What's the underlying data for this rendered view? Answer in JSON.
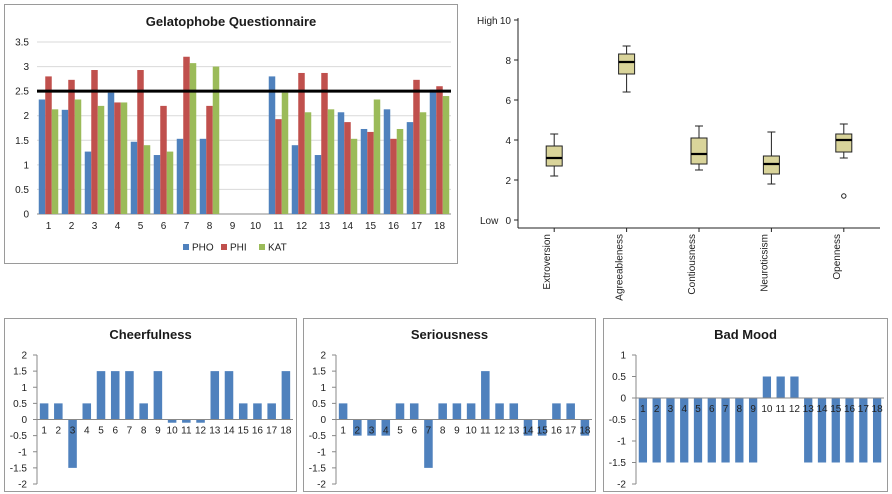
{
  "chart_data": [
    {
      "id": "gelatophobe",
      "type": "bar",
      "title": "Gelatophobe Questionnaire",
      "categories": [
        "1",
        "2",
        "3",
        "4",
        "5",
        "6",
        "7",
        "8",
        "9",
        "10",
        "11",
        "12",
        "13",
        "14",
        "15",
        "16",
        "17",
        "18"
      ],
      "ylim": [
        0,
        3.5
      ],
      "yticks": [
        "0",
        "0.5",
        "1",
        "1.5",
        "2",
        "2.5",
        "3",
        "3.5"
      ],
      "threshold": 2.5,
      "legend_position": "bottom",
      "series": [
        {
          "name": "PHO",
          "color": "#4f81bd",
          "values": [
            2.33,
            2.12,
            1.27,
            2.47,
            1.47,
            1.2,
            1.53,
            1.53,
            null,
            null,
            2.8,
            1.4,
            1.2,
            2.07,
            1.73,
            2.13,
            1.87,
            2.53
          ]
        },
        {
          "name": "PHI",
          "color": "#c0504d",
          "values": [
            2.8,
            2.73,
            2.93,
            2.27,
            2.93,
            2.2,
            3.2,
            2.2,
            null,
            null,
            1.93,
            2.87,
            2.87,
            1.87,
            1.67,
            1.53,
            2.73,
            2.6
          ]
        },
        {
          "name": "KAT",
          "color": "#9bbb59",
          "values": [
            2.13,
            2.33,
            2.2,
            2.27,
            1.4,
            1.27,
            3.07,
            3.0,
            null,
            null,
            2.47,
            2.07,
            2.13,
            1.53,
            2.33,
            1.73,
            2.07,
            2.4
          ]
        }
      ]
    },
    {
      "id": "bigfive",
      "type": "box",
      "categories": [
        "Extroversion",
        "Agreeableness",
        "Contiousness",
        "Neuroticsism",
        "Openness"
      ],
      "ylim": [
        0,
        10
      ],
      "yticks": [
        "0",
        "2",
        "4",
        "6",
        "8",
        "10"
      ],
      "y_high_label": "High",
      "y_low_label": "Low",
      "fill": "#d9d49a",
      "boxes": [
        {
          "min": 2.2,
          "q1": 2.7,
          "median": 3.1,
          "q3": 3.7,
          "max": 4.3,
          "outliers": []
        },
        {
          "min": 6.4,
          "q1": 7.3,
          "median": 7.9,
          "q3": 8.3,
          "max": 8.7,
          "outliers": []
        },
        {
          "min": 2.5,
          "q1": 2.8,
          "median": 3.3,
          "q3": 4.1,
          "max": 4.7,
          "outliers": []
        },
        {
          "min": 1.8,
          "q1": 2.3,
          "median": 2.8,
          "q3": 3.2,
          "max": 4.4,
          "outliers": []
        },
        {
          "min": 3.1,
          "q1": 3.4,
          "median": 4.0,
          "q3": 4.3,
          "max": 4.8,
          "outliers": [
            1.2
          ]
        }
      ]
    },
    {
      "id": "cheerfulness",
      "type": "bar",
      "title": "Cheerfulness",
      "categories": [
        "1",
        "2",
        "3",
        "4",
        "5",
        "6",
        "7",
        "8",
        "9",
        "10",
        "11",
        "12",
        "13",
        "14",
        "15",
        "16",
        "17",
        "18"
      ],
      "ylim": [
        -2,
        2
      ],
      "yticks": [
        "-2",
        "-1.5",
        "-1",
        "-0.5",
        "0",
        "0.5",
        "1",
        "1.5",
        "2"
      ],
      "color": "#4f81bd",
      "values": [
        0.5,
        0.5,
        -1.5,
        0.5,
        1.5,
        1.5,
        1.5,
        0.5,
        1.5,
        -0.1,
        -0.1,
        -0.1,
        1.5,
        1.5,
        0.5,
        0.5,
        0.5,
        1.5
      ]
    },
    {
      "id": "seriousness",
      "type": "bar",
      "title": "Seriousness",
      "categories": [
        "1",
        "2",
        "3",
        "4",
        "5",
        "6",
        "7",
        "8",
        "9",
        "10",
        "11",
        "12",
        "13",
        "14",
        "15",
        "16",
        "17",
        "18"
      ],
      "ylim": [
        -2,
        2
      ],
      "yticks": [
        "-2",
        "-1.5",
        "-1",
        "-0.5",
        "0",
        "0.5",
        "1",
        "1.5",
        "2"
      ],
      "color": "#4f81bd",
      "values": [
        0.5,
        -0.5,
        -0.5,
        -0.5,
        0.5,
        0.5,
        -1.5,
        0.5,
        0.5,
        0.5,
        1.5,
        0.5,
        0.5,
        -0.5,
        -0.5,
        0.5,
        0.5,
        -0.5
      ]
    },
    {
      "id": "badmood",
      "type": "bar",
      "title": "Bad Mood",
      "categories": [
        "1",
        "2",
        "3",
        "4",
        "5",
        "6",
        "7",
        "8",
        "9",
        "10",
        "11",
        "12",
        "13",
        "14",
        "15",
        "16",
        "17",
        "18"
      ],
      "ylim": [
        -2,
        1
      ],
      "yticks": [
        "-2",
        "-1.5",
        "-1",
        "-0.5",
        "0",
        "0.5",
        "1"
      ],
      "color": "#4f81bd",
      "values": [
        -1.5,
        -1.5,
        -1.5,
        -1.5,
        -1.5,
        -1.5,
        -1.5,
        -1.5,
        -1.5,
        0.5,
        0.5,
        0.5,
        -1.5,
        -1.5,
        -1.5,
        -1.5,
        -1.5,
        -1.5
      ]
    }
  ]
}
